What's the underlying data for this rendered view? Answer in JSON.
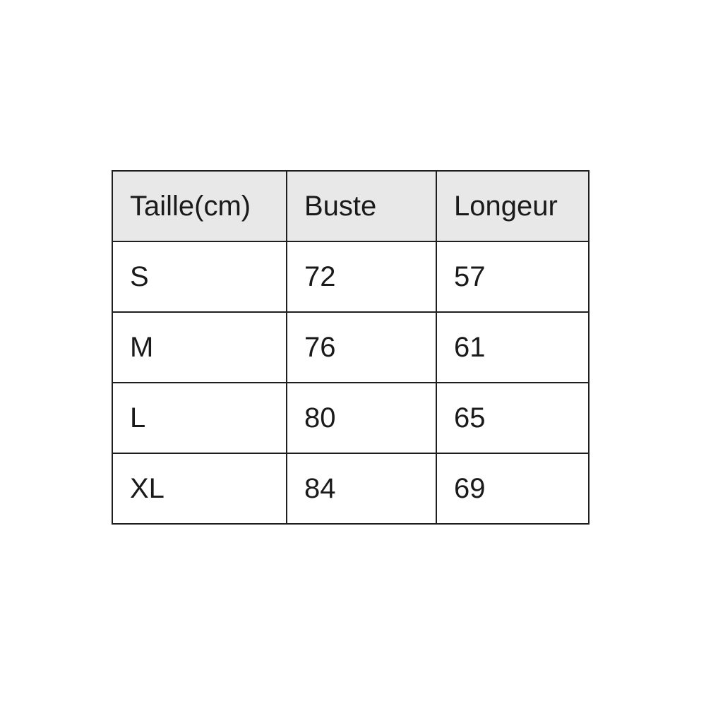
{
  "size_chart": {
    "headers": [
      "Taille(cm)",
      "Buste",
      "Longeur"
    ],
    "rows": [
      {
        "size": "S",
        "buste": "72",
        "longeur": "57"
      },
      {
        "size": "M",
        "buste": "76",
        "longeur": "61"
      },
      {
        "size": "L",
        "buste": "80",
        "longeur": "65"
      },
      {
        "size": "XL",
        "buste": "84",
        "longeur": "69"
      }
    ],
    "colors": {
      "header_background": "#e8e8e8",
      "border": "#1f1f1f",
      "text": "#1a1a1a",
      "page_background": "#ffffff"
    }
  }
}
